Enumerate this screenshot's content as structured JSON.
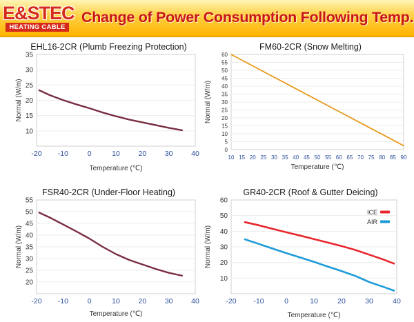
{
  "header": {
    "logo_text": "E&STEC",
    "logo_subtitle": "HEATING CABLE",
    "title": "Change of Power Consumption Following Temp."
  },
  "colors": {
    "header_bg": "#ffc21a",
    "title_red": "#c8161b",
    "axis_blue": "#2b4e9b",
    "tick_gray": "#333333",
    "curve_maroon": "#7a2e42",
    "curve_orange": "#e79a1c",
    "ice_red": "#e8262d",
    "air_blue": "#1e9bd7"
  },
  "chart_data": [
    {
      "type": "line",
      "title": "EHL16-2CR (Plumb Freezing Protection)",
      "xlabel": "Temperature (℃)",
      "ylabel": "Normal (W/m)",
      "xlim": [
        -20,
        40
      ],
      "ylim": [
        5,
        35
      ],
      "xticks": [
        "-20",
        "-10",
        "0",
        "10",
        "20",
        "30",
        "40"
      ],
      "yticks": [
        "10",
        "15",
        "20",
        "25",
        "30",
        "35"
      ],
      "series": [
        {
          "name": "EHL16-2CR",
          "color": "#7a2e42",
          "x": [
            -19,
            -15,
            -10,
            -5,
            0,
            5,
            10,
            15,
            20,
            25,
            30,
            35
          ],
          "y": [
            23.3,
            21.7,
            20.1,
            18.7,
            17.4,
            16.0,
            14.8,
            13.7,
            12.8,
            11.9,
            11.0,
            10.2
          ]
        }
      ]
    },
    {
      "type": "line",
      "title": "FM60-2CR (Snow Melting)",
      "xlabel": "Temperature (℃)",
      "ylabel": "Normal (W/m)",
      "xlim": [
        10,
        90
      ],
      "ylim": [
        0,
        60
      ],
      "xticks": [
        "10",
        "15",
        "20",
        "25",
        "30",
        "35",
        "40",
        "45",
        "50",
        "55",
        "60",
        "65",
        "70",
        "75",
        "80",
        "85",
        "90"
      ],
      "yticks": [
        "0",
        "5",
        "10",
        "15",
        "20",
        "25",
        "30",
        "35",
        "40",
        "45",
        "50",
        "55",
        "60"
      ],
      "series": [
        {
          "name": "FM60-2CR",
          "color": "#e79a1c",
          "x": [
            10,
            90
          ],
          "y": [
            60,
            2.5
          ]
        }
      ]
    },
    {
      "type": "line",
      "title": "FSR40-2CR (Under-Floor Heating)",
      "xlabel": "Temperature (℃)",
      "ylabel": "Normal (W/m)",
      "xlim": [
        -20,
        40
      ],
      "ylim": [
        15,
        55
      ],
      "xticks": [
        "-20",
        "-10",
        "0",
        "10",
        "20",
        "30",
        "40"
      ],
      "yticks": [
        "20",
        "25",
        "30",
        "35",
        "40",
        "45",
        "50",
        "55"
      ],
      "series": [
        {
          "name": "FSR40-2CR",
          "color": "#7a2e42",
          "x": [
            -19,
            -15,
            -10,
            -5,
            0,
            5,
            10,
            15,
            20,
            25,
            30,
            35
          ],
          "y": [
            49.6,
            47.5,
            44.6,
            41.6,
            38.5,
            35.0,
            31.9,
            29.4,
            27.5,
            25.6,
            23.9,
            22.7
          ]
        }
      ]
    },
    {
      "type": "line",
      "title": "GR40-2CR (Roof & Gutter Deicing)",
      "xlabel": "Temperature (℃)",
      "ylabel": "Normal (W/m)",
      "xlim": [
        -20,
        40
      ],
      "ylim": [
        0,
        60
      ],
      "xticks": [
        "-20",
        "-10",
        "0",
        "10",
        "20",
        "30",
        "40"
      ],
      "yticks": [
        "10",
        "20",
        "30",
        "40",
        "50",
        "60"
      ],
      "legend": "top-right",
      "series": [
        {
          "name": "ICE",
          "color": "#e8262d",
          "x": [
            -15,
            -10,
            -5,
            0,
            5,
            10,
            15,
            20,
            25,
            30,
            35,
            39
          ],
          "y": [
            45.8,
            43.8,
            41.5,
            39.3,
            37.2,
            35.0,
            32.8,
            30.5,
            28.0,
            25.0,
            22.0,
            19.3
          ]
        },
        {
          "name": "AIR",
          "color": "#1e9bd7",
          "x": [
            -15,
            -10,
            -5,
            0,
            5,
            10,
            15,
            20,
            25,
            30,
            35,
            39
          ],
          "y": [
            34.8,
            31.9,
            28.9,
            26.0,
            23.2,
            20.4,
            17.4,
            14.5,
            11.4,
            7.5,
            4.5,
            2.0
          ]
        }
      ]
    }
  ]
}
